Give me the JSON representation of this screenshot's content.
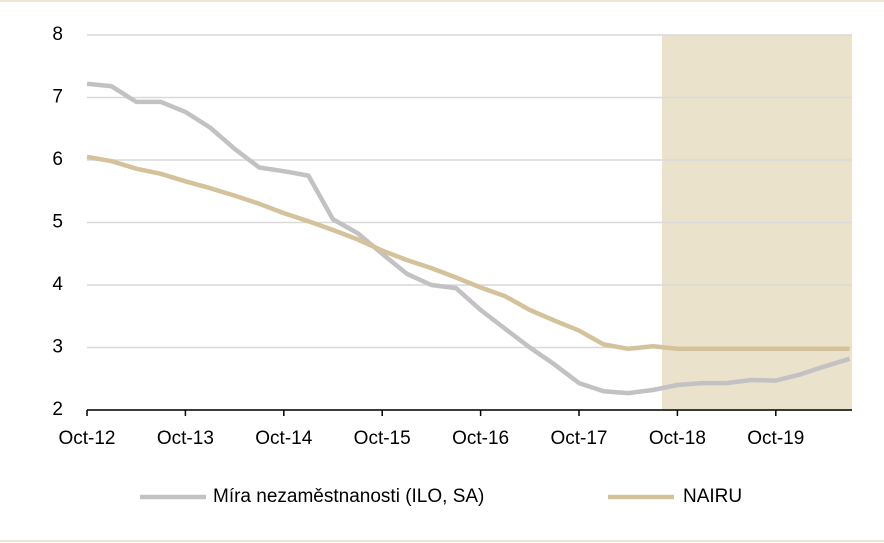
{
  "chart_data": {
    "type": "line",
    "categories": [
      "Oct-12",
      null,
      null,
      null,
      "Oct-13",
      null,
      null,
      null,
      "Oct-14",
      null,
      null,
      null,
      "Oct-15",
      null,
      null,
      null,
      "Oct-16",
      null,
      null,
      null,
      "Oct-17",
      null,
      null,
      null,
      "Oct-18",
      null,
      null,
      null,
      "Oct-19",
      null,
      null,
      null
    ],
    "series": [
      {
        "name": "Míra nezaměstnanosti (ILO, SA)",
        "color": "#c3c1c3",
        "values": [
          7.22,
          7.18,
          6.93,
          6.93,
          6.77,
          6.52,
          6.18,
          5.88,
          5.82,
          5.75,
          5.05,
          4.83,
          4.5,
          4.18,
          4.0,
          3.95,
          3.6,
          3.3,
          3.0,
          2.73,
          2.43,
          2.3,
          2.27,
          2.32,
          2.4,
          2.43,
          2.43,
          2.48,
          2.47,
          2.57,
          2.7,
          2.82
        ]
      },
      {
        "name": "NAIRU",
        "color": "#d4c29a",
        "values": [
          6.05,
          5.98,
          5.86,
          5.78,
          5.66,
          5.55,
          5.43,
          5.3,
          5.15,
          5.02,
          4.88,
          4.73,
          4.55,
          4.4,
          4.27,
          4.12,
          3.96,
          3.82,
          3.6,
          3.43,
          3.27,
          3.05,
          2.98,
          3.02,
          2.98,
          2.98,
          2.98,
          2.98,
          2.98,
          2.98,
          2.98,
          2.98
        ]
      }
    ],
    "ylim": [
      2,
      8
    ],
    "yticks": [
      2,
      3,
      4,
      5,
      6,
      7,
      8
    ],
    "grid": true
  }
}
